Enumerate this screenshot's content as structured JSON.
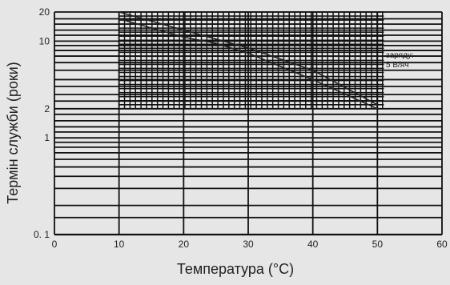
{
  "chart_data": {
    "type": "line",
    "title": "",
    "xlabel": "Температура (°C)",
    "ylabel": "Термін служби (роки)",
    "xlim": [
      0,
      60
    ],
    "ylim": [
      0.1,
      20
    ],
    "y_scale": "log",
    "x_ticks": [
      "0",
      "10",
      "20",
      "30",
      "40",
      "50",
      "60"
    ],
    "y_ticks": [
      {
        "value": 20,
        "label": "20"
      },
      {
        "value": 10,
        "label": "10"
      },
      {
        "value": 2,
        "label": "2"
      },
      {
        "value": 1,
        "label": "1"
      },
      {
        "value": 0.1,
        "label": "0. 1"
      }
    ],
    "series": [
      {
        "x": [
          10,
          20,
          25,
          30,
          40,
          50
        ],
        "y": [
          17,
          11,
          9.5,
          7.5,
          4,
          2
        ]
      },
      {
        "x": [
          10,
          20,
          25,
          30,
          40,
          50
        ],
        "y": [
          20,
          13,
          10.5,
          8.5,
          5,
          2.2
        ]
      }
    ],
    "annotation": {
      "lines": [
        "зарядy:",
        "5 В/яч"
      ],
      "x": 51,
      "y": 9
    },
    "grid": true,
    "dense_grid_region": {
      "xlim": [
        10,
        51
      ],
      "ylim": [
        2,
        20
      ]
    }
  }
}
